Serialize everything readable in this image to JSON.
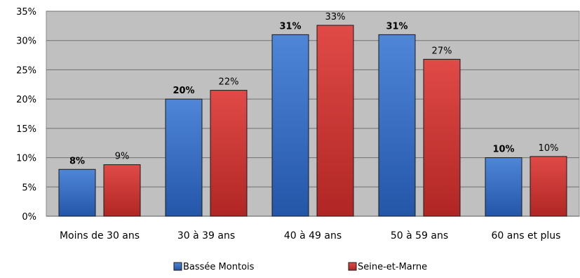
{
  "chart_data": {
    "type": "bar",
    "categories": [
      "Moins de 30 ans",
      "30 à 39 ans",
      "40 à 49 ans",
      "50 à 59 ans",
      "60 ans et plus"
    ],
    "series": [
      {
        "name": "Bassée Montois",
        "values": [
          8,
          20,
          31,
          31,
          10
        ],
        "labels": [
          "8%",
          "20%",
          "31%",
          "31%",
          "10%"
        ],
        "color": "#3B73C8",
        "label_bold": true
      },
      {
        "name": "Seine-et-Marne",
        "values": [
          8.8,
          21.5,
          32.6,
          26.8,
          10.2
        ],
        "labels": [
          "9%",
          "22%",
          "33%",
          "27%",
          "10%"
        ],
        "color": "#D03A38",
        "label_bold": false
      }
    ],
    "y_ticks": [
      0,
      5,
      10,
      15,
      20,
      25,
      30,
      35
    ],
    "y_tick_labels": [
      "0%",
      "5%",
      "10%",
      "15%",
      "20%",
      "25%",
      "30%",
      "35%"
    ],
    "ylim": [
      0,
      35
    ],
    "grid": true,
    "plot_background": "#C0C0C0",
    "legend_position": "bottom"
  }
}
